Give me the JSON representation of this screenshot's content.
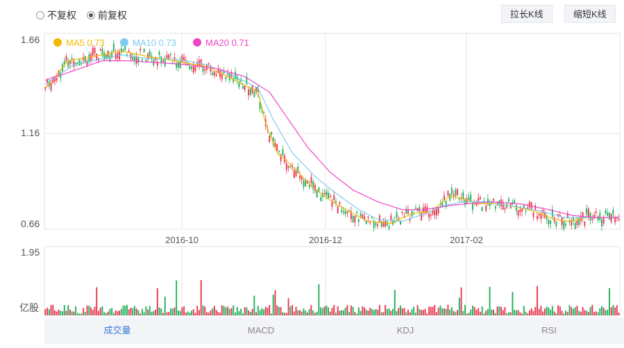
{
  "toolbar": {
    "radio_no_adjust": "不复权",
    "radio_forward_adjust": "前复权",
    "stretch_button": "拉长K线",
    "shrink_button": "缩短K线"
  },
  "legend": {
    "ma5": "MA5 0.73",
    "ma10": "MA10 0.73",
    "ma20": "MA20 0.71",
    "ma5_color": "#f5b800",
    "ma10_color": "#7ecbef",
    "ma20_color": "#ee44c8"
  },
  "colors": {
    "up": "#e8364f",
    "down": "#22b05a",
    "active_tab": "#3b7dd8"
  },
  "price_axis": {
    "top_label": "1.66",
    "mid_label": "1.16",
    "bottom_label": "0.66"
  },
  "volume_axis": {
    "top_label": "1.95",
    "unit_label": "亿股"
  },
  "date_labels": [
    "2016-10",
    "2016-12",
    "2017-02"
  ],
  "tabs": [
    "成交量",
    "MACD",
    "KDJ",
    "RSI"
  ],
  "chart_data": {
    "type": "candlestick",
    "ylim": [
      0.66,
      1.66
    ],
    "volume_ylim": [
      0,
      1.95
    ],
    "x_tick_labels": [
      "2016-10",
      "2016-12",
      "2017-02"
    ],
    "series": [
      {
        "name": "MA5 0.73",
        "anchors": [
          [
            0,
            1.38
          ],
          [
            12,
            1.52
          ],
          [
            30,
            1.55
          ],
          [
            40,
            1.57
          ],
          [
            55,
            1.54
          ],
          [
            68,
            1.52
          ],
          [
            85,
            1.49
          ],
          [
            100,
            1.42
          ],
          [
            112,
            1.36
          ],
          [
            116,
            1.2
          ],
          [
            122,
            1.05
          ],
          [
            128,
            1.0
          ],
          [
            138,
            0.9
          ],
          [
            148,
            0.82
          ],
          [
            158,
            0.76
          ],
          [
            170,
            0.7
          ],
          [
            182,
            0.69
          ],
          [
            193,
            0.74
          ],
          [
            203,
            0.75
          ],
          [
            213,
            0.83
          ],
          [
            218,
            0.82
          ],
          [
            228,
            0.79
          ],
          [
            240,
            0.79
          ],
          [
            258,
            0.75
          ],
          [
            268,
            0.71
          ],
          [
            276,
            0.7
          ],
          [
            285,
            0.72
          ],
          [
            303,
            0.72
          ]
        ]
      },
      {
        "name": "MA10 0.73",
        "anchors": [
          [
            0,
            1.4
          ],
          [
            15,
            1.5
          ],
          [
            30,
            1.53
          ],
          [
            40,
            1.55
          ],
          [
            55,
            1.53
          ],
          [
            68,
            1.53
          ],
          [
            85,
            1.5
          ],
          [
            100,
            1.44
          ],
          [
            112,
            1.38
          ],
          [
            120,
            1.22
          ],
          [
            130,
            1.05
          ],
          [
            142,
            0.93
          ],
          [
            152,
            0.85
          ],
          [
            165,
            0.76
          ],
          [
            175,
            0.71
          ],
          [
            188,
            0.7
          ],
          [
            200,
            0.74
          ],
          [
            210,
            0.78
          ],
          [
            220,
            0.8
          ],
          [
            232,
            0.8
          ],
          [
            245,
            0.78
          ],
          [
            262,
            0.75
          ],
          [
            273,
            0.72
          ],
          [
            285,
            0.72
          ],
          [
            303,
            0.72
          ]
        ]
      },
      {
        "name": "MA20 0.71",
        "anchors": [
          [
            0,
            1.42
          ],
          [
            15,
            1.47
          ],
          [
            30,
            1.52
          ],
          [
            45,
            1.52
          ],
          [
            60,
            1.51
          ],
          [
            75,
            1.5
          ],
          [
            90,
            1.48
          ],
          [
            105,
            1.44
          ],
          [
            118,
            1.36
          ],
          [
            128,
            1.22
          ],
          [
            138,
            1.08
          ],
          [
            150,
            0.95
          ],
          [
            162,
            0.86
          ],
          [
            175,
            0.8
          ],
          [
            188,
            0.76
          ],
          [
            200,
            0.76
          ],
          [
            212,
            0.78
          ],
          [
            222,
            0.79
          ],
          [
            235,
            0.8
          ],
          [
            250,
            0.79
          ],
          [
            265,
            0.76
          ],
          [
            278,
            0.73
          ],
          [
            290,
            0.72
          ],
          [
            303,
            0.72
          ]
        ]
      }
    ],
    "candle_count": 303
  }
}
